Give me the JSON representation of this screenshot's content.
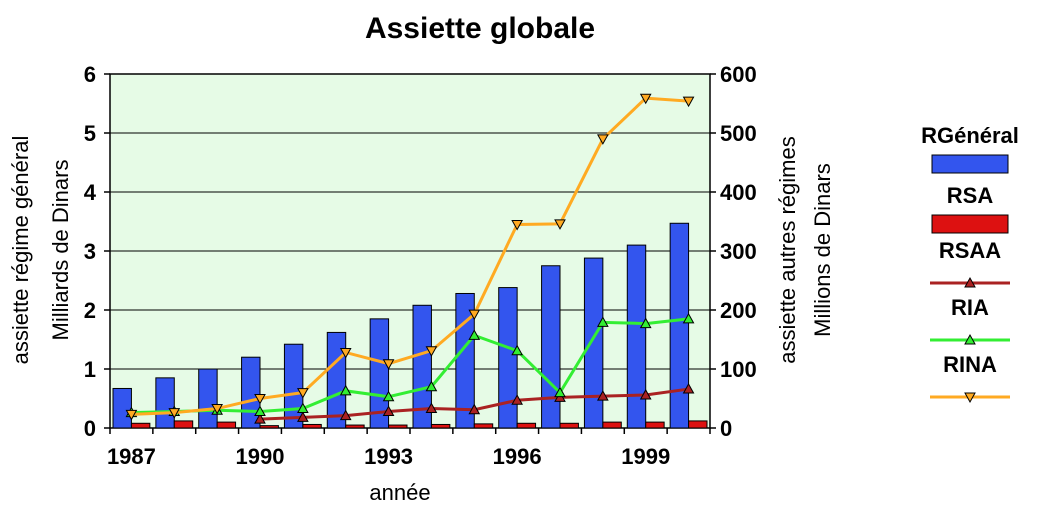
{
  "chart_data": {
    "type": "bar",
    "title": "Assiette globale",
    "xlabel": "année",
    "ylabel_left": [
      "assiette régime général",
      "Milliards de Dinars"
    ],
    "ylabel_right": [
      "assiette autres régimes",
      "Millions de Dinars"
    ],
    "x_tick_labels": [
      "1987",
      "1990",
      "1993",
      "1996",
      "1999"
    ],
    "y_left_ticks": [
      "0",
      "1",
      "2",
      "3",
      "4",
      "5",
      "6"
    ],
    "y_right_ticks": [
      "0",
      "100",
      "200",
      "300",
      "400",
      "500",
      "600"
    ],
    "ylim_left": [
      0,
      6
    ],
    "ylim_right": [
      0,
      600
    ],
    "grid": "horizontal",
    "legend_position": "right",
    "plot_background": "#e6fbe6",
    "categories": [
      1987,
      1988,
      1989,
      1990,
      1991,
      1992,
      1993,
      1994,
      1995,
      1996,
      1997,
      1998,
      1999,
      2000
    ],
    "series": [
      {
        "name": "RGénéral",
        "type": "bar",
        "axis": "left",
        "color": "#3355ee",
        "values": [
          0.67,
          0.85,
          1.0,
          1.2,
          1.42,
          1.62,
          1.85,
          2.08,
          2.28,
          2.38,
          2.75,
          2.88,
          3.1,
          3.47
        ]
      },
      {
        "name": "RSA",
        "type": "bar",
        "axis": "left",
        "color": "#dd1111",
        "values": [
          0.08,
          0.12,
          0.1,
          0.04,
          0.06,
          0.05,
          0.05,
          0.06,
          0.07,
          0.08,
          0.08,
          0.1,
          0.1,
          0.12
        ]
      },
      {
        "name": "RSAA",
        "type": "line",
        "axis": "right",
        "color": "#aa2222",
        "marker": "triangle-up",
        "x": [
          1990,
          1991,
          1992,
          1993,
          1994,
          1995,
          1996,
          1997,
          1998,
          1999,
          2000
        ],
        "values": [
          15,
          18,
          21,
          28,
          33,
          31,
          47,
          52,
          54,
          56,
          66
        ]
      },
      {
        "name": "RIA",
        "type": "line",
        "axis": "right",
        "color": "#33ee33",
        "marker": "triangle-up",
        "x": [
          1987,
          1988,
          1989,
          1990,
          1991,
          1992,
          1993,
          1994,
          1995,
          1996,
          1997,
          1998,
          1999,
          2000
        ],
        "values": [
          26,
          28,
          30,
          28,
          33,
          63,
          53,
          70,
          157,
          131,
          60,
          179,
          177,
          185
        ]
      },
      {
        "name": "RINA",
        "type": "line",
        "axis": "right",
        "color": "#ffaa22",
        "marker": "triangle-down",
        "x": [
          1987,
          1988,
          1989,
          1990,
          1991,
          1992,
          1993,
          1994,
          1995,
          1996,
          1997,
          1998,
          1999,
          2000
        ],
        "values": [
          23,
          26,
          33,
          50,
          60,
          128,
          109,
          131,
          193,
          345,
          346,
          490,
          559,
          554
        ]
      }
    ]
  }
}
